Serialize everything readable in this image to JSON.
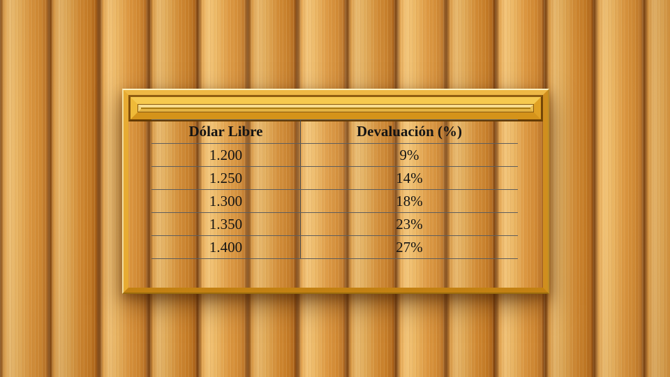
{
  "table": {
    "header": {
      "dolar": "Dólar Libre",
      "devaluacion": "Devaluación (%)"
    },
    "rows": [
      {
        "dolar": "1.200",
        "devaluacion": "9%"
      },
      {
        "dolar": "1.250",
        "devaluacion": "14%"
      },
      {
        "dolar": "1.300",
        "devaluacion": "18%"
      },
      {
        "dolar": "1.350",
        "devaluacion": "23%"
      },
      {
        "dolar": "1.400",
        "devaluacion": "27%"
      }
    ]
  },
  "chart_data": {
    "type": "table",
    "columns": [
      "Dólar Libre",
      "Devaluación (%)"
    ],
    "rows": [
      [
        "1.200",
        "9%"
      ],
      [
        "1.250",
        "14%"
      ],
      [
        "1.300",
        "18%"
      ],
      [
        "1.350",
        "23%"
      ],
      [
        "1.400",
        "27%"
      ]
    ],
    "dolar_libre_values": [
      1200,
      1250,
      1300,
      1350,
      1400
    ],
    "devaluacion_percent": [
      9,
      14,
      18,
      23,
      27
    ]
  },
  "colors": {
    "wood_base": "#d99a40",
    "wood_gap": "#7c4514",
    "frame_gold": "#e9ac28",
    "frame_ridge": "#7b4c07",
    "frame_highlight": "#f6c94f",
    "mat_white": "#fdfdfb",
    "table_line": "#5d5d5d",
    "text": "#141414"
  }
}
